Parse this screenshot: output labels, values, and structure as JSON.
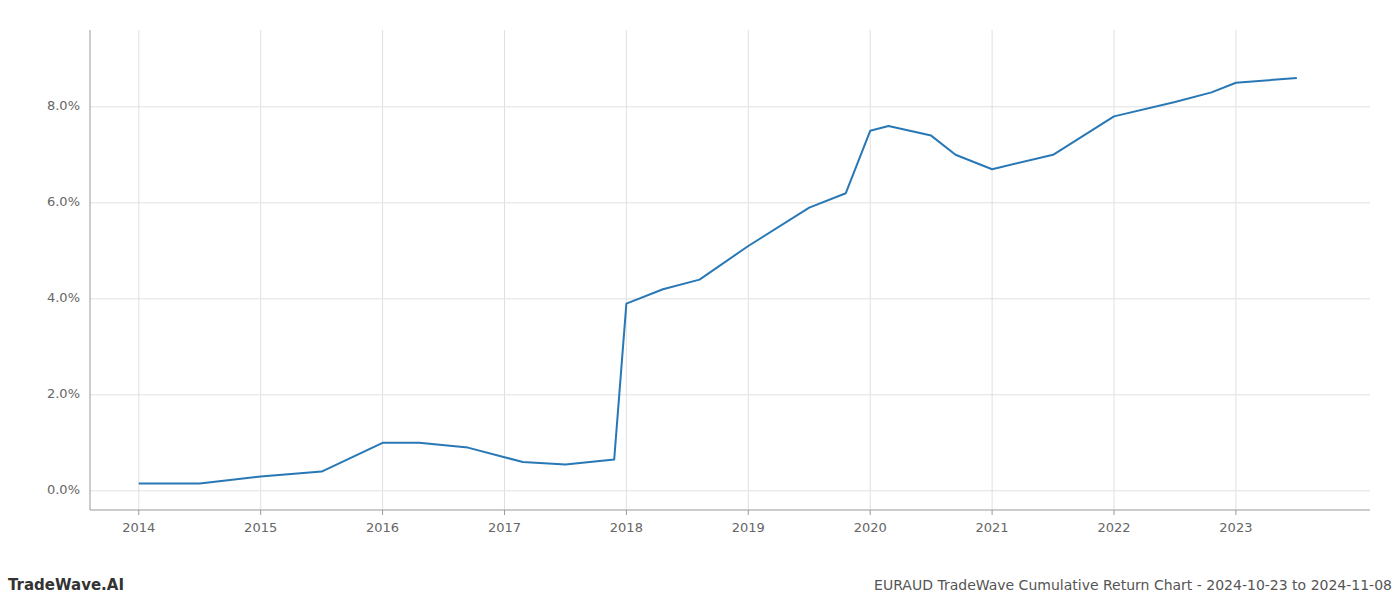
{
  "chart_data": {
    "type": "line",
    "title": "EURAUD TradeWave Cumulative Return Chart - 2024-10-23 to 2024-11-08",
    "annotations": [
      "TradeWave.AI"
    ],
    "x": [
      2014,
      2014.5,
      2015,
      2015.5,
      2016,
      2016.3,
      2016.7,
      2017,
      2017.15,
      2017.5,
      2017.9,
      2018.0,
      2018.3,
      2018.6,
      2019.0,
      2019.5,
      2019.8,
      2020.0,
      2020.15,
      2020.5,
      2020.7,
      2021.0,
      2021.5,
      2022.0,
      2022.5,
      2022.8,
      2023.0,
      2023.5
    ],
    "values": [
      0.0015,
      0.0015,
      0.003,
      0.004,
      0.01,
      0.01,
      0.009,
      0.007,
      0.006,
      0.0055,
      0.0065,
      0.039,
      0.042,
      0.044,
      0.051,
      0.059,
      0.062,
      0.075,
      0.076,
      0.074,
      0.07,
      0.067,
      0.07,
      0.078,
      0.081,
      0.083,
      0.085,
      0.086
    ],
    "color": "#2878b5",
    "xlim": [
      2013.6,
      2024.1
    ],
    "ylim": [
      -0.004,
      0.096
    ],
    "xticks": [
      2014,
      2015,
      2016,
      2017,
      2018,
      2019,
      2020,
      2021,
      2022,
      2023
    ],
    "yticks": [
      {
        "value": 0.0,
        "label": "0.0%"
      },
      {
        "value": 0.02,
        "label": "2.0%"
      },
      {
        "value": 0.04,
        "label": "4.0%"
      },
      {
        "value": 0.06,
        "label": "6.0%"
      },
      {
        "value": 0.08,
        "label": "8.0%"
      }
    ],
    "grid": true
  }
}
